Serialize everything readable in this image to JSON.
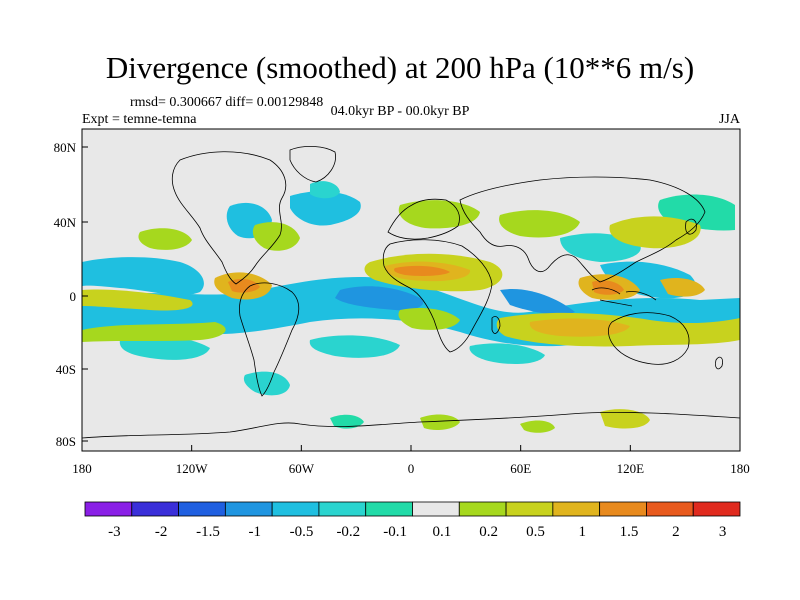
{
  "title": "Divergence (smoothed) at 200 hPa (10**6 m/s)",
  "stats_line": "rmsd= 0.300667 diff= 0.00129848",
  "expt_line": "Expt = temne-temna",
  "period_line": "04.0kyr BP - 00.0kyr BP",
  "season": "JJA",
  "x_ticks": [
    "180",
    "120W",
    "60W",
    "0",
    "60E",
    "120E",
    "180"
  ],
  "y_ticks": [
    "80N",
    "40N",
    "0",
    "40S",
    "80S"
  ],
  "colorbar": {
    "labels": [
      "-3",
      "-2",
      "-1.5",
      "-1",
      "-0.5",
      "-0.2",
      "-0.1",
      "0.1",
      "0.2",
      "0.5",
      "1",
      "1.5",
      "2",
      "3"
    ],
    "colors": [
      "#8a1fe6",
      "#3a2fd9",
      "#1f5fe0",
      "#1f95e0",
      "#1fbfe0",
      "#2ad4cf",
      "#22dba8",
      "#e8e8e8",
      "#a6d81e",
      "#c8d21e",
      "#e0b41e",
      "#e88a1e",
      "#e85a1e",
      "#e02a1e"
    ]
  },
  "colors": {
    "land_outline": "#000000",
    "background": "#e8e8e8"
  }
}
